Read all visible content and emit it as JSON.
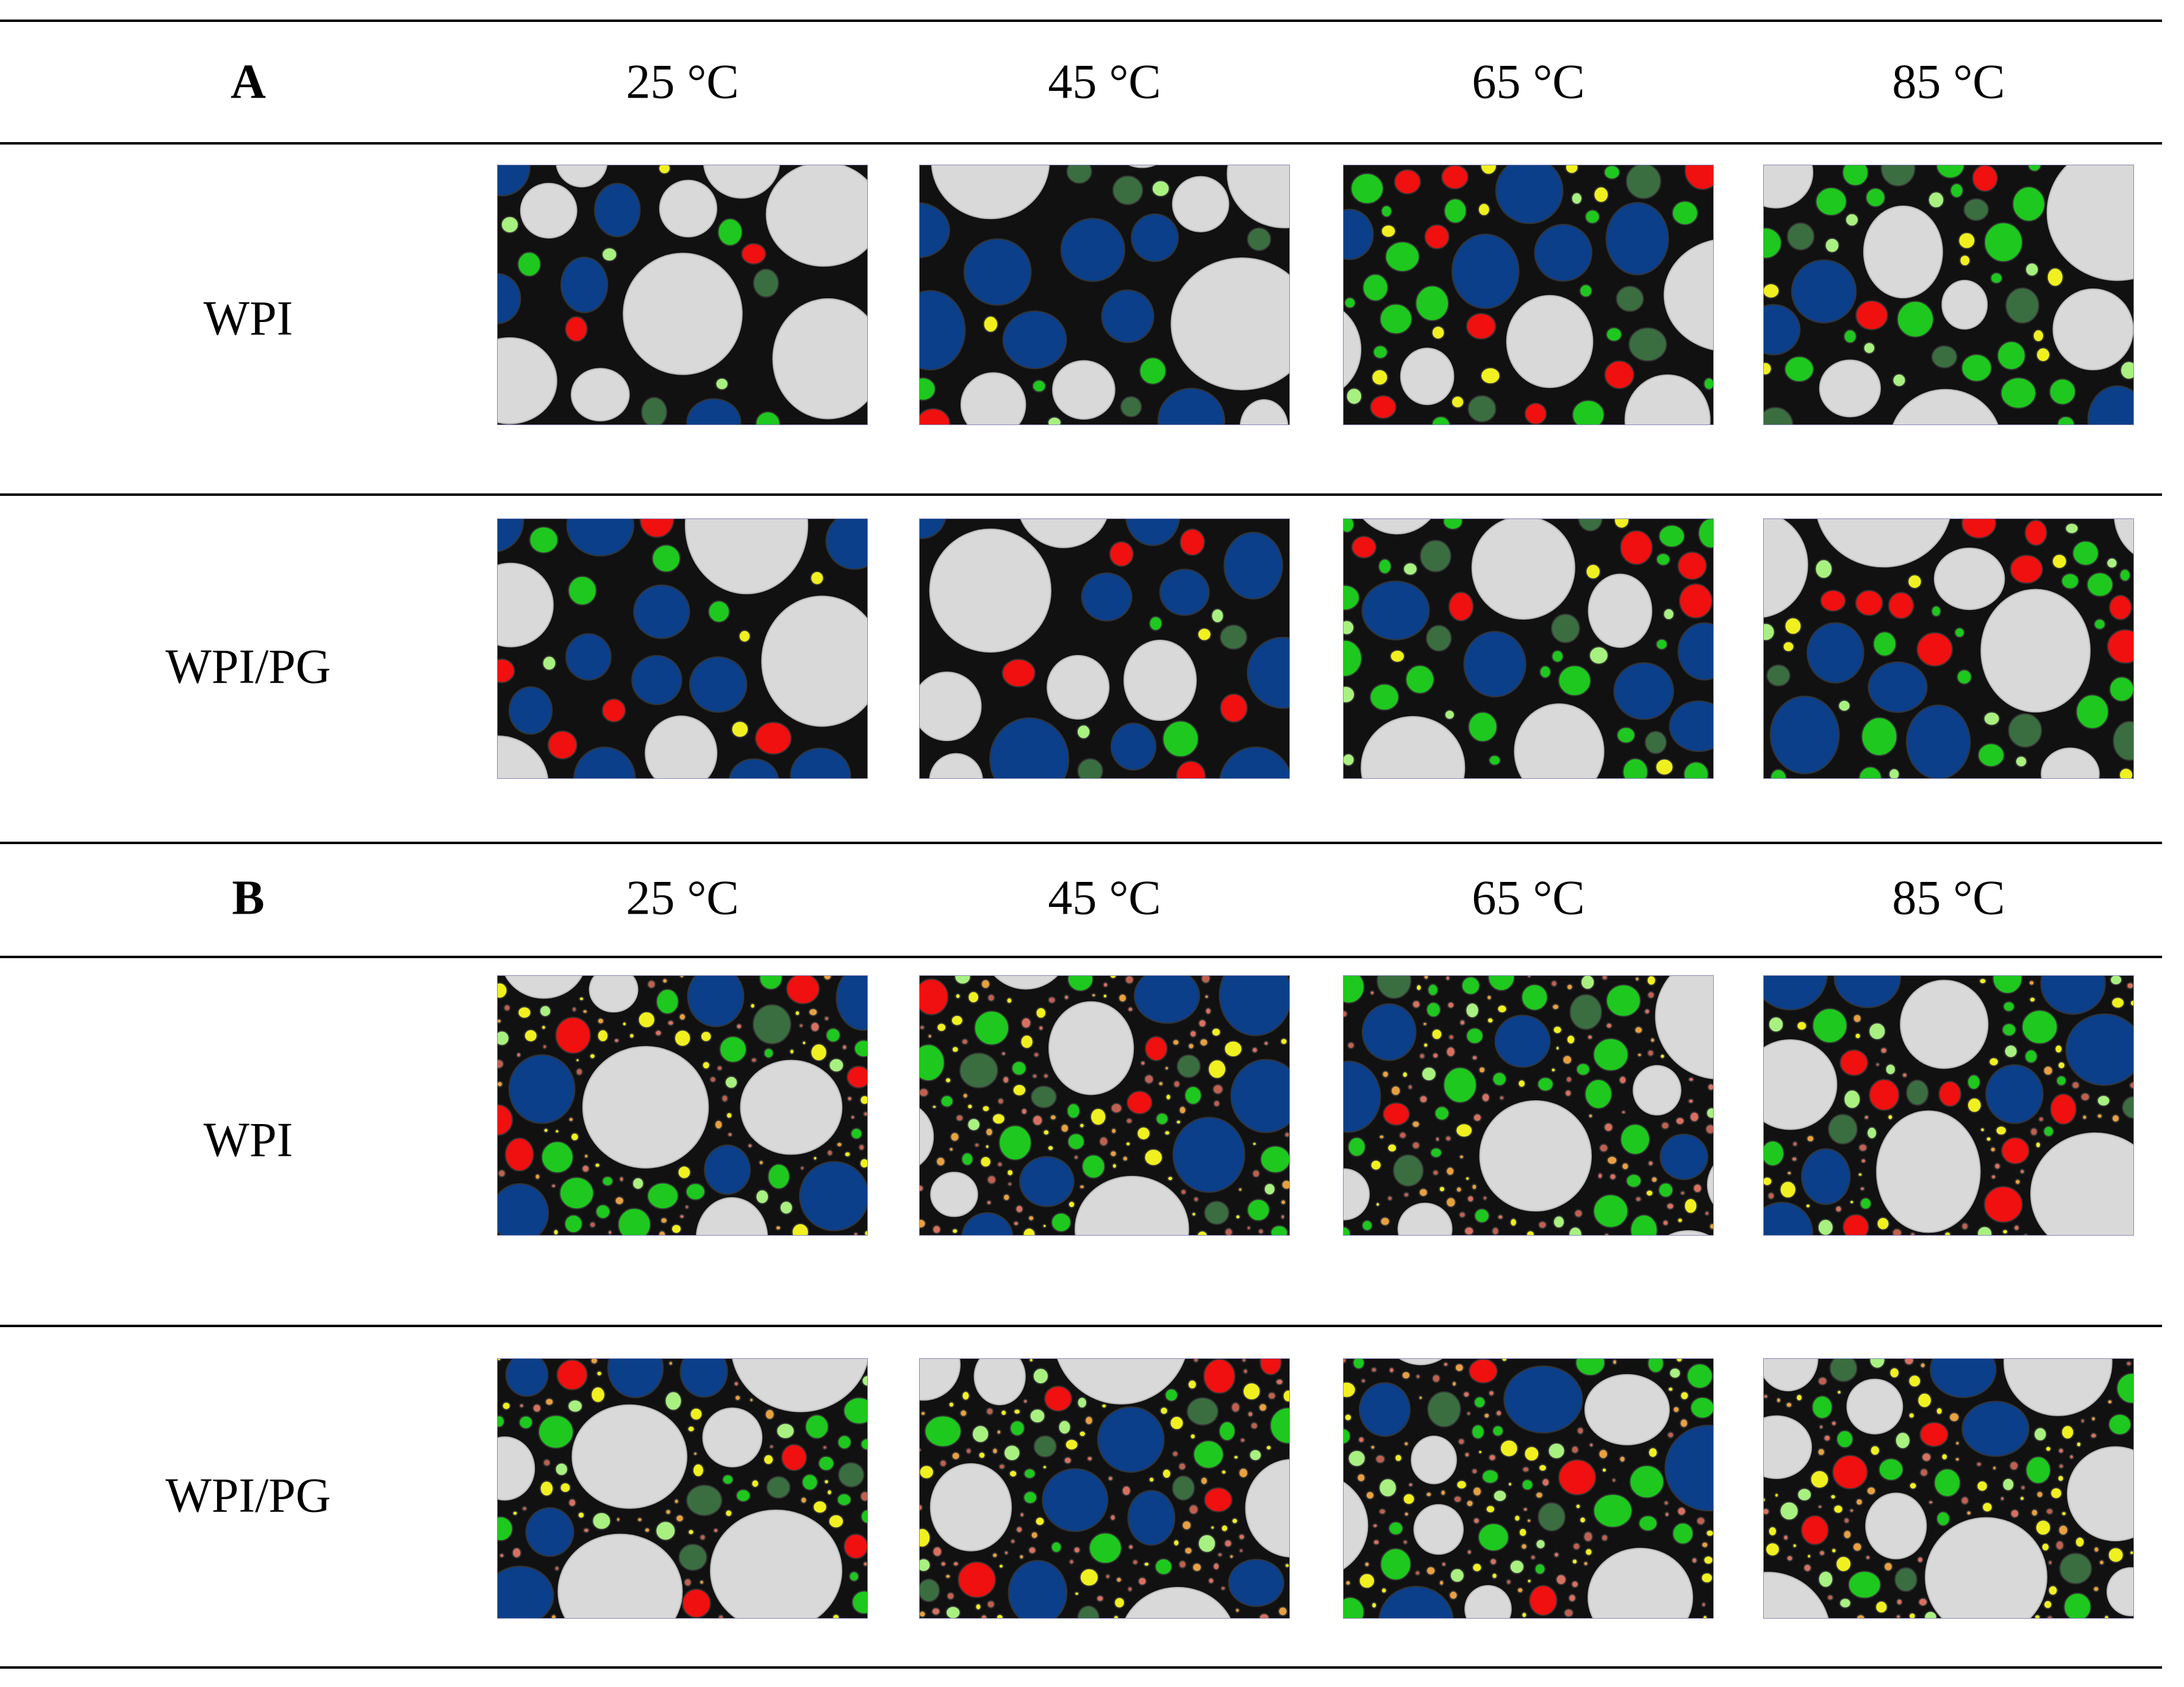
{
  "sections": [
    {
      "label": "A",
      "columns": [
        "25 °C",
        "45 °C",
        "65 °C",
        "85 °C"
      ],
      "rows": [
        {
          "label": "WPI"
        },
        {
          "label": "WPI/PG"
        }
      ]
    },
    {
      "label": "B",
      "columns": [
        "25 °C",
        "45 °C",
        "65 °C",
        "85 °C"
      ],
      "rows": [
        {
          "label": "WPI"
        },
        {
          "label": "WPI/PG"
        }
      ]
    }
  ]
}
